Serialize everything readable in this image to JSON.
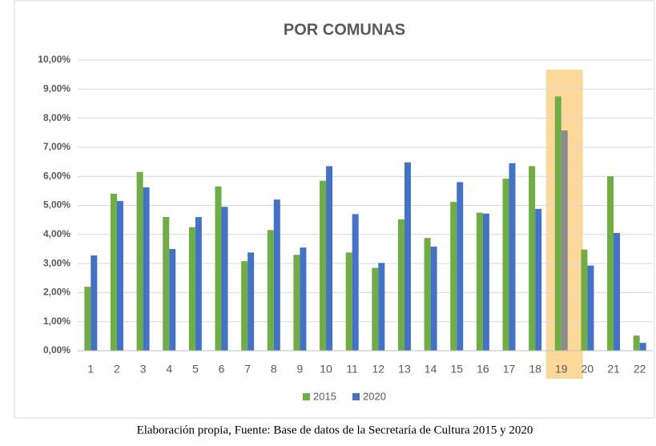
{
  "chart_data": {
    "type": "bar",
    "title": "POR COMUNAS",
    "categories": [
      "1",
      "2",
      "3",
      "4",
      "5",
      "6",
      "7",
      "8",
      "9",
      "10",
      "11",
      "12",
      "13",
      "14",
      "15",
      "16",
      "17",
      "18",
      "19",
      "20",
      "21",
      "22"
    ],
    "series": [
      {
        "name": "2015",
        "color": "#70ad47",
        "values": [
          2.2,
          5.4,
          6.15,
          4.6,
          4.25,
          5.65,
          3.08,
          4.15,
          3.3,
          5.85,
          3.38,
          2.85,
          4.52,
          3.88,
          5.12,
          4.75,
          5.92,
          6.35,
          8.75,
          3.48,
          6.0,
          0.52
        ]
      },
      {
        "name": "2020",
        "color": "#4472c4",
        "highlight_color": "#8c8c8c",
        "values": [
          3.28,
          5.15,
          5.62,
          3.5,
          4.6,
          4.95,
          3.38,
          5.2,
          3.55,
          6.35,
          4.7,
          3.02,
          6.48,
          3.58,
          5.8,
          4.72,
          6.45,
          4.88,
          7.58,
          2.93,
          4.05,
          0.27
        ]
      }
    ],
    "highlight": "19",
    "highlight_fill": "#fcd99a",
    "ylim": [
      0,
      10
    ],
    "yticks": [
      {
        "value": 0,
        "label": "0,00%"
      },
      {
        "value": 1,
        "label": "1,00%"
      },
      {
        "value": 2,
        "label": "2,00%"
      },
      {
        "value": 3,
        "label": "3,00%"
      },
      {
        "value": 4,
        "label": "4,00%"
      },
      {
        "value": 5,
        "label": "5,00%"
      },
      {
        "value": 6,
        "label": "6,00%"
      },
      {
        "value": 7,
        "label": "7,00%"
      },
      {
        "value": 8,
        "label": "8,00%"
      },
      {
        "value": 9,
        "label": "9,00%"
      },
      {
        "value": 10,
        "label": "10,00%"
      }
    ],
    "grid": true,
    "legend": "bottom",
    "caption": "Elaboración propia, Fuente: Base de datos de la Secretaría de Cultura 2015 y 2020"
  }
}
